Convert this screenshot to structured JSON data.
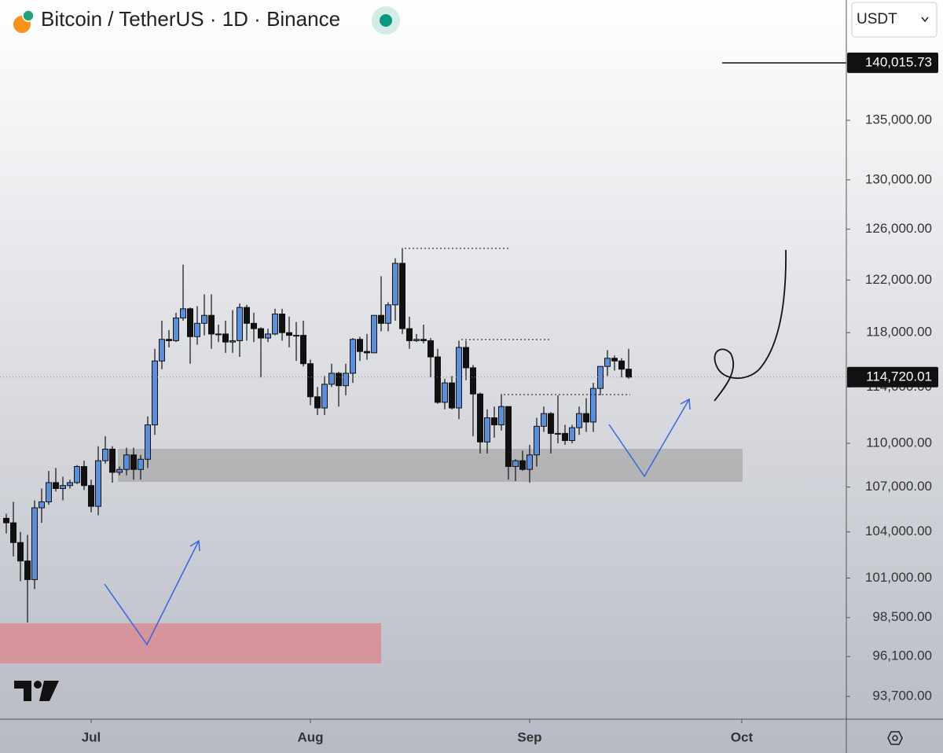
{
  "header": {
    "title": "Bitcoin / TetherUS · 1D · Binance",
    "currency": "USDT"
  },
  "chart_data": {
    "type": "candlestick",
    "open": [
      104900,
      104600,
      103300,
      102100,
      100900,
      105600,
      106000,
      107300,
      106900,
      107100,
      107300,
      108400,
      107100,
      105700,
      108800,
      109600,
      108000,
      108200,
      109200,
      108200,
      108900,
      111300,
      115900,
      117500,
      117400,
      119100,
      119800,
      117700,
      118700,
      119300,
      117900,
      117900,
      117300,
      117400,
      119900,
      118700,
      118300,
      117600,
      117900,
      119400,
      118000,
      117800,
      117800,
      115700,
      113300,
      112500,
      114200,
      115000,
      114100,
      115000,
      117500,
      116600,
      116500,
      119300,
      118700,
      120100,
      123300,
      118300,
      117400,
      117500,
      117400,
      116200,
      112900,
      114300,
      112500,
      116900,
      115400,
      113500,
      110100,
      111800,
      111300,
      112600,
      108400,
      108800,
      108200,
      109200,
      111200,
      112100,
      110700,
      110700,
      110200,
      111100,
      112100,
      111500,
      113900,
      115500,
      116100,
      115900,
      115300
    ],
    "high": [
      105200,
      106000,
      104000,
      103800,
      106100,
      106900,
      108100,
      108300,
      107700,
      107500,
      108500,
      108800,
      107500,
      109800,
      110500,
      109800,
      108400,
      109700,
      109700,
      109200,
      111900,
      116800,
      118900,
      118200,
      119500,
      123200,
      119900,
      120000,
      120900,
      120900,
      118600,
      118900,
      119700,
      120200,
      120100,
      119500,
      118400,
      118300,
      119800,
      119800,
      119200,
      118800,
      118900,
      116000,
      114000,
      114800,
      115700,
      115100,
      115700,
      117600,
      117700,
      117900,
      119300,
      122300,
      120300,
      123700,
      124500,
      119200,
      117900,
      118600,
      117600,
      116800,
      114600,
      114800,
      117400,
      117400,
      115600,
      113600,
      112400,
      112600,
      113500,
      112600,
      108900,
      109500,
      109900,
      111800,
      112600,
      112200,
      113400,
      111300,
      111300,
      112600,
      113200,
      114300,
      115500,
      116700,
      116300,
      116100,
      116800
    ],
    "low": [
      103900,
      102400,
      100800,
      98200,
      100300,
      104600,
      105800,
      106700,
      106100,
      106900,
      107200,
      106800,
      105300,
      105100,
      108600,
      107300,
      107800,
      107800,
      107500,
      107500,
      108300,
      110600,
      115300,
      116900,
      117300,
      118900,
      115700,
      117100,
      117800,
      116800,
      117300,
      116500,
      116500,
      116200,
      117400,
      117300,
      114700,
      117300,
      117800,
      117400,
      116900,
      115900,
      115500,
      112700,
      112000,
      112000,
      114000,
      112600,
      113400,
      114300,
      115900,
      116000,
      116500,
      118100,
      118100,
      118900,
      117900,
      116800,
      117300,
      117200,
      114700,
      112800,
      112400,
      112400,
      111700,
      114500,
      110500,
      109300,
      109300,
      110400,
      110900,
      107500,
      107400,
      108100,
      107300,
      108400,
      110800,
      109300,
      110000,
      109900,
      110000,
      110600,
      110800,
      110800,
      113400,
      114800,
      115200,
      114700,
      114600
    ],
    "close": [
      104600,
      103300,
      102100,
      100900,
      105600,
      106000,
      107300,
      106900,
      107100,
      107300,
      108400,
      107100,
      105700,
      108800,
      109600,
      108000,
      108200,
      109200,
      108200,
      108900,
      111300,
      115900,
      117500,
      117400,
      119100,
      119800,
      117700,
      118700,
      119300,
      117900,
      117900,
      117300,
      117400,
      119900,
      118700,
      118300,
      117600,
      117900,
      119400,
      118000,
      117800,
      117800,
      115700,
      113300,
      112500,
      114200,
      115000,
      114100,
      115000,
      117500,
      116600,
      116500,
      119300,
      118700,
      120100,
      123300,
      118300,
      117400,
      117500,
      117400,
      116200,
      112900,
      114300,
      112500,
      116900,
      115400,
      113500,
      110100,
      111800,
      111300,
      112600,
      108400,
      108800,
      108200,
      109200,
      111200,
      112100,
      110700,
      110700,
      110200,
      111100,
      112100,
      111500,
      113900,
      115500,
      116100,
      115900,
      115300,
      114720
    ],
    "up_color": "#5b8fd9",
    "down_color": "#111111",
    "log_scale": true,
    "xlim": [
      -0.889,
      118.78
    ],
    "xticks": [
      {
        "value": 12,
        "label": "Jul"
      },
      {
        "value": 43,
        "label": "Aug"
      },
      {
        "value": 74,
        "label": "Sep"
      },
      {
        "value": 104,
        "label": "Oct"
      }
    ],
    "ylim": [
      92356,
      145700
    ],
    "yticks": [
      {
        "value": 93700,
        "label": "93,700.00"
      },
      {
        "value": 96100,
        "label": "96,100.00"
      },
      {
        "value": 98500,
        "label": "98,500.00"
      },
      {
        "value": 101000,
        "label": "101,000.00"
      },
      {
        "value": 104000,
        "label": "104,000.00"
      },
      {
        "value": 107000,
        "label": "107,000.00"
      },
      {
        "value": 110000,
        "label": "110,000.00"
      },
      {
        "value": 114000,
        "label": "114,000.00"
      },
      {
        "value": 118000,
        "label": "118,000.00"
      },
      {
        "value": 122000,
        "label": "122,000.00"
      },
      {
        "value": 126000,
        "label": "126,000.00"
      },
      {
        "value": 130000,
        "label": "130,000.00"
      },
      {
        "value": 135000,
        "label": "135,000.00"
      }
    ],
    "price_markers": [
      {
        "value": 140015.73,
        "label": "140,015.73"
      },
      {
        "value": 114720.01,
        "label": "114,720.01"
      }
    ]
  }
}
